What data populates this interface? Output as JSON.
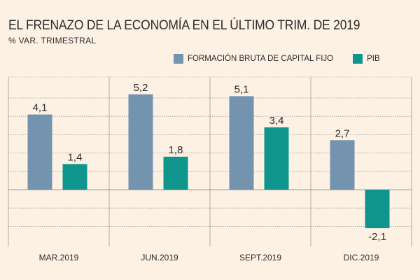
{
  "title": "EL FRENAZO DE LA ECONOMÍA EN EL ÚLTIMO TRIM. DE 2019",
  "subtitle": "% VAR. TRIMESTRAL",
  "colors": {
    "fbcf": "#7393ae",
    "pib": "#10958c",
    "background": "#fdf1e4",
    "grid": "#9a9a9a"
  },
  "chart_data": {
    "type": "bar",
    "title": "EL FRENAZO DE LA ECONOMÍA EN EL ÚLTIMO TRIM. DE 2019",
    "ylabel": "% VAR. TRIMESTRAL",
    "categories": [
      "MAR.2019",
      "JUN.2019",
      "SEPT.2019",
      "DIC.2019"
    ],
    "series": [
      {
        "name": "FORMACIÓN BRUTA DE CAPITAL FIJO",
        "values": [
          4.1,
          5.2,
          5.1,
          2.7
        ],
        "labels": [
          "4,1",
          "5,2",
          "5,1",
          "2,7"
        ],
        "color": "#7393ae"
      },
      {
        "name": "PIB",
        "values": [
          1.4,
          1.8,
          3.4,
          -2.1
        ],
        "labels": [
          "1,4",
          "1,8",
          "3,4",
          "-2,1"
        ],
        "color": "#10958c"
      }
    ],
    "ylim": [
      -3,
      6
    ],
    "grid": true,
    "legend": "top-right"
  }
}
